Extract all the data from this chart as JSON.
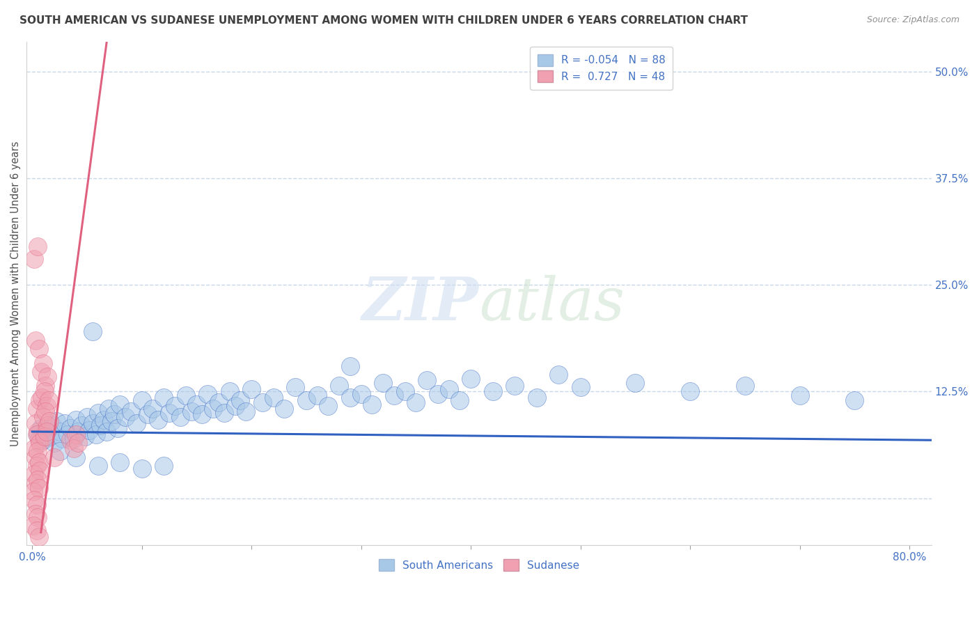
{
  "title": "SOUTH AMERICAN VS SUDANESE UNEMPLOYMENT AMONG WOMEN WITH CHILDREN UNDER 6 YEARS CORRELATION CHART",
  "source": "Source: ZipAtlas.com",
  "ylabel": "Unemployment Among Women with Children Under 6 years",
  "xlim": [
    -0.005,
    0.82
  ],
  "ylim": [
    -0.055,
    0.535
  ],
  "xticks": [
    0.0,
    0.1,
    0.2,
    0.3,
    0.4,
    0.5,
    0.6,
    0.7,
    0.8
  ],
  "xticklabels": [
    "0.0%",
    "",
    "",
    "",
    "",
    "",
    "",
    "",
    "80.0%"
  ],
  "yticks": [
    0.0,
    0.125,
    0.25,
    0.375,
    0.5
  ],
  "yticklabels": [
    "",
    "12.5%",
    "25.0%",
    "37.5%",
    "50.0%"
  ],
  "watermark_zip": "ZIP",
  "watermark_atlas": "atlas",
  "sa_color": "#a8c8e8",
  "su_color": "#f0a0b0",
  "sa_line_color": "#3060c0",
  "su_line_color": "#e06080",
  "title_color": "#404040",
  "source_color": "#909090",
  "tick_color": "#4472c4",
  "grid_color": "#c8d8e8",
  "sa_R": -0.054,
  "su_R": 0.727,
  "sa_N": 88,
  "su_N": 48,
  "sa_line_x0": 0.0,
  "sa_line_x1": 0.82,
  "sa_line_y0": 0.078,
  "sa_line_y1": 0.068,
  "su_line_x0": 0.008,
  "su_line_x1": 0.068,
  "su_line_y0": -0.04,
  "su_line_y1": 0.535,
  "sa_scatter": [
    [
      0.005,
      0.075
    ],
    [
      0.008,
      0.082
    ],
    [
      0.01,
      0.068
    ],
    [
      0.012,
      0.08
    ],
    [
      0.015,
      0.072
    ],
    [
      0.018,
      0.085
    ],
    [
      0.02,
      0.065
    ],
    [
      0.022,
      0.09
    ],
    [
      0.025,
      0.078
    ],
    [
      0.028,
      0.07
    ],
    [
      0.03,
      0.088
    ],
    [
      0.032,
      0.075
    ],
    [
      0.035,
      0.082
    ],
    [
      0.038,
      0.07
    ],
    [
      0.04,
      0.092
    ],
    [
      0.042,
      0.078
    ],
    [
      0.045,
      0.085
    ],
    [
      0.048,
      0.072
    ],
    [
      0.05,
      0.095
    ],
    [
      0.052,
      0.08
    ],
    [
      0.055,
      0.088
    ],
    [
      0.058,
      0.075
    ],
    [
      0.06,
      0.1
    ],
    [
      0.062,
      0.085
    ],
    [
      0.065,
      0.092
    ],
    [
      0.068,
      0.078
    ],
    [
      0.07,
      0.105
    ],
    [
      0.072,
      0.09
    ],
    [
      0.075,
      0.098
    ],
    [
      0.078,
      0.082
    ],
    [
      0.08,
      0.11
    ],
    [
      0.085,
      0.095
    ],
    [
      0.09,
      0.102
    ],
    [
      0.095,
      0.088
    ],
    [
      0.1,
      0.115
    ],
    [
      0.105,
      0.098
    ],
    [
      0.11,
      0.105
    ],
    [
      0.115,
      0.092
    ],
    [
      0.12,
      0.118
    ],
    [
      0.125,
      0.1
    ],
    [
      0.13,
      0.108
    ],
    [
      0.135,
      0.095
    ],
    [
      0.14,
      0.12
    ],
    [
      0.145,
      0.102
    ],
    [
      0.15,
      0.11
    ],
    [
      0.155,
      0.098
    ],
    [
      0.16,
      0.122
    ],
    [
      0.165,
      0.105
    ],
    [
      0.17,
      0.112
    ],
    [
      0.175,
      0.1
    ],
    [
      0.18,
      0.125
    ],
    [
      0.185,
      0.108
    ],
    [
      0.19,
      0.115
    ],
    [
      0.195,
      0.102
    ],
    [
      0.2,
      0.128
    ],
    [
      0.21,
      0.112
    ],
    [
      0.22,
      0.118
    ],
    [
      0.23,
      0.105
    ],
    [
      0.24,
      0.13
    ],
    [
      0.25,
      0.115
    ],
    [
      0.26,
      0.12
    ],
    [
      0.27,
      0.108
    ],
    [
      0.28,
      0.132
    ],
    [
      0.29,
      0.118
    ],
    [
      0.3,
      0.122
    ],
    [
      0.31,
      0.11
    ],
    [
      0.32,
      0.135
    ],
    [
      0.33,
      0.12
    ],
    [
      0.34,
      0.125
    ],
    [
      0.35,
      0.112
    ],
    [
      0.36,
      0.138
    ],
    [
      0.37,
      0.122
    ],
    [
      0.38,
      0.128
    ],
    [
      0.39,
      0.115
    ],
    [
      0.4,
      0.14
    ],
    [
      0.42,
      0.125
    ],
    [
      0.44,
      0.132
    ],
    [
      0.46,
      0.118
    ],
    [
      0.48,
      0.145
    ],
    [
      0.5,
      0.13
    ],
    [
      0.55,
      0.135
    ],
    [
      0.6,
      0.125
    ],
    [
      0.65,
      0.132
    ],
    [
      0.7,
      0.12
    ],
    [
      0.75,
      0.115
    ],
    [
      0.055,
      0.195
    ],
    [
      0.29,
      0.155
    ],
    [
      0.025,
      0.055
    ],
    [
      0.04,
      0.048
    ],
    [
      0.06,
      0.038
    ],
    [
      0.08,
      0.042
    ],
    [
      0.1,
      0.035
    ],
    [
      0.12,
      0.038
    ]
  ],
  "su_scatter": [
    [
      0.002,
      0.28
    ],
    [
      0.005,
      0.295
    ],
    [
      0.003,
      0.185
    ],
    [
      0.006,
      0.175
    ],
    [
      0.004,
      0.105
    ],
    [
      0.007,
      0.115
    ],
    [
      0.005,
      0.078
    ],
    [
      0.003,
      0.088
    ],
    [
      0.006,
      0.068
    ],
    [
      0.004,
      0.075
    ],
    [
      0.002,
      0.058
    ],
    [
      0.007,
      0.065
    ],
    [
      0.003,
      0.048
    ],
    [
      0.005,
      0.055
    ],
    [
      0.004,
      0.038
    ],
    [
      0.006,
      0.042
    ],
    [
      0.002,
      0.028
    ],
    [
      0.007,
      0.032
    ],
    [
      0.003,
      0.018
    ],
    [
      0.005,
      0.022
    ],
    [
      0.001,
      0.008
    ],
    [
      0.006,
      0.012
    ],
    [
      0.002,
      -0.002
    ],
    [
      0.004,
      -0.008
    ],
    [
      0.003,
      -0.018
    ],
    [
      0.005,
      -0.022
    ],
    [
      0.001,
      -0.032
    ],
    [
      0.004,
      -0.038
    ],
    [
      0.006,
      -0.045
    ],
    [
      0.008,
      0.148
    ],
    [
      0.01,
      0.158
    ],
    [
      0.012,
      0.132
    ],
    [
      0.014,
      0.142
    ],
    [
      0.009,
      0.118
    ],
    [
      0.011,
      0.125
    ],
    [
      0.013,
      0.108
    ],
    [
      0.015,
      0.115
    ],
    [
      0.01,
      0.095
    ],
    [
      0.012,
      0.102
    ],
    [
      0.014,
      0.085
    ],
    [
      0.016,
      0.09
    ],
    [
      0.011,
      0.072
    ],
    [
      0.013,
      0.078
    ],
    [
      0.035,
      0.068
    ],
    [
      0.04,
      0.075
    ],
    [
      0.038,
      0.058
    ],
    [
      0.042,
      0.065
    ],
    [
      0.02,
      0.048
    ]
  ]
}
